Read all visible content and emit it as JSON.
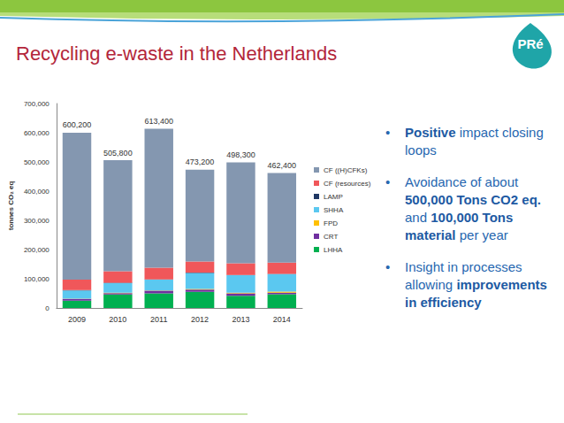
{
  "slide": {
    "title": "Recycling e-waste in the Netherlands",
    "logo": "PRé",
    "bullets": [
      [
        {
          "text": "Positive",
          "bold": true
        },
        {
          "text": " impact closing loops",
          "bold": false
        }
      ],
      [
        {
          "text": "Avoidance of about ",
          "bold": false
        },
        {
          "text": "500,000 Tons CO2 eq.",
          "bold": true
        },
        {
          "text": " and ",
          "bold": false
        },
        {
          "text": "100,000 Tons material",
          "bold": true
        },
        {
          "text": " per year",
          "bold": false
        }
      ],
      [
        {
          "text": "Insight in processes allowing ",
          "bold": false
        },
        {
          "text": "improvements in efficiency",
          "bold": true
        }
      ]
    ]
  },
  "chart_data": {
    "type": "bar",
    "stacked": true,
    "grid": false,
    "legend": "right",
    "ylabel": "tonnes CO₂ eq",
    "categories": [
      "2009",
      "2010",
      "2011",
      "2012",
      "2013",
      "2014"
    ],
    "ylim": [
      0,
      700000
    ],
    "yticks": [
      0,
      {
        "value": 100000,
        "label": "100,000"
      },
      {
        "value": 200000,
        "label": "200,000"
      },
      {
        "value": 300000,
        "label": "300,000"
      },
      {
        "value": 400000,
        "label": "400,000"
      },
      {
        "value": 500000,
        "label": "500,000"
      },
      {
        "value": 600000,
        "label": "600,000"
      },
      {
        "value": 700000,
        "label": "700,000"
      }
    ],
    "series": [
      {
        "name": "LHHA",
        "color": "#00b050",
        "values": [
          25000,
          46000,
          50000,
          55000,
          42000,
          47000
        ]
      },
      {
        "name": "CRT",
        "color": "#7030a0",
        "values": [
          6000,
          5000,
          9000,
          8000,
          8000,
          5000
        ]
      },
      {
        "name": "FPD",
        "color": "#ffc000",
        "values": [
          1000,
          1000,
          1000,
          2000,
          2000,
          4000
        ]
      },
      {
        "name": "SHHA",
        "color": "#5bc8f0",
        "values": [
          28000,
          33000,
          37000,
          55000,
          60000,
          60000
        ]
      },
      {
        "name": "LAMP",
        "color": "#203864",
        "values": [
          1000,
          1000,
          1000,
          1000,
          1000,
          1000
        ]
      },
      {
        "name": "CF (resources)",
        "color": "#f0575a",
        "values": [
          36000,
          40000,
          40000,
          38000,
          40000,
          38000
        ]
      },
      {
        "name": "CF ((H)CFKs)",
        "color": "#8497b0",
        "values": [
          503200,
          379800,
          475400,
          314200,
          345300,
          307400
        ]
      }
    ],
    "totals": [
      600200,
      505800,
      613400,
      473200,
      498300,
      462400
    ],
    "total_labels": [
      "600,200",
      "505,800",
      "613,400",
      "473,200",
      "498,300",
      "462,400"
    ]
  }
}
